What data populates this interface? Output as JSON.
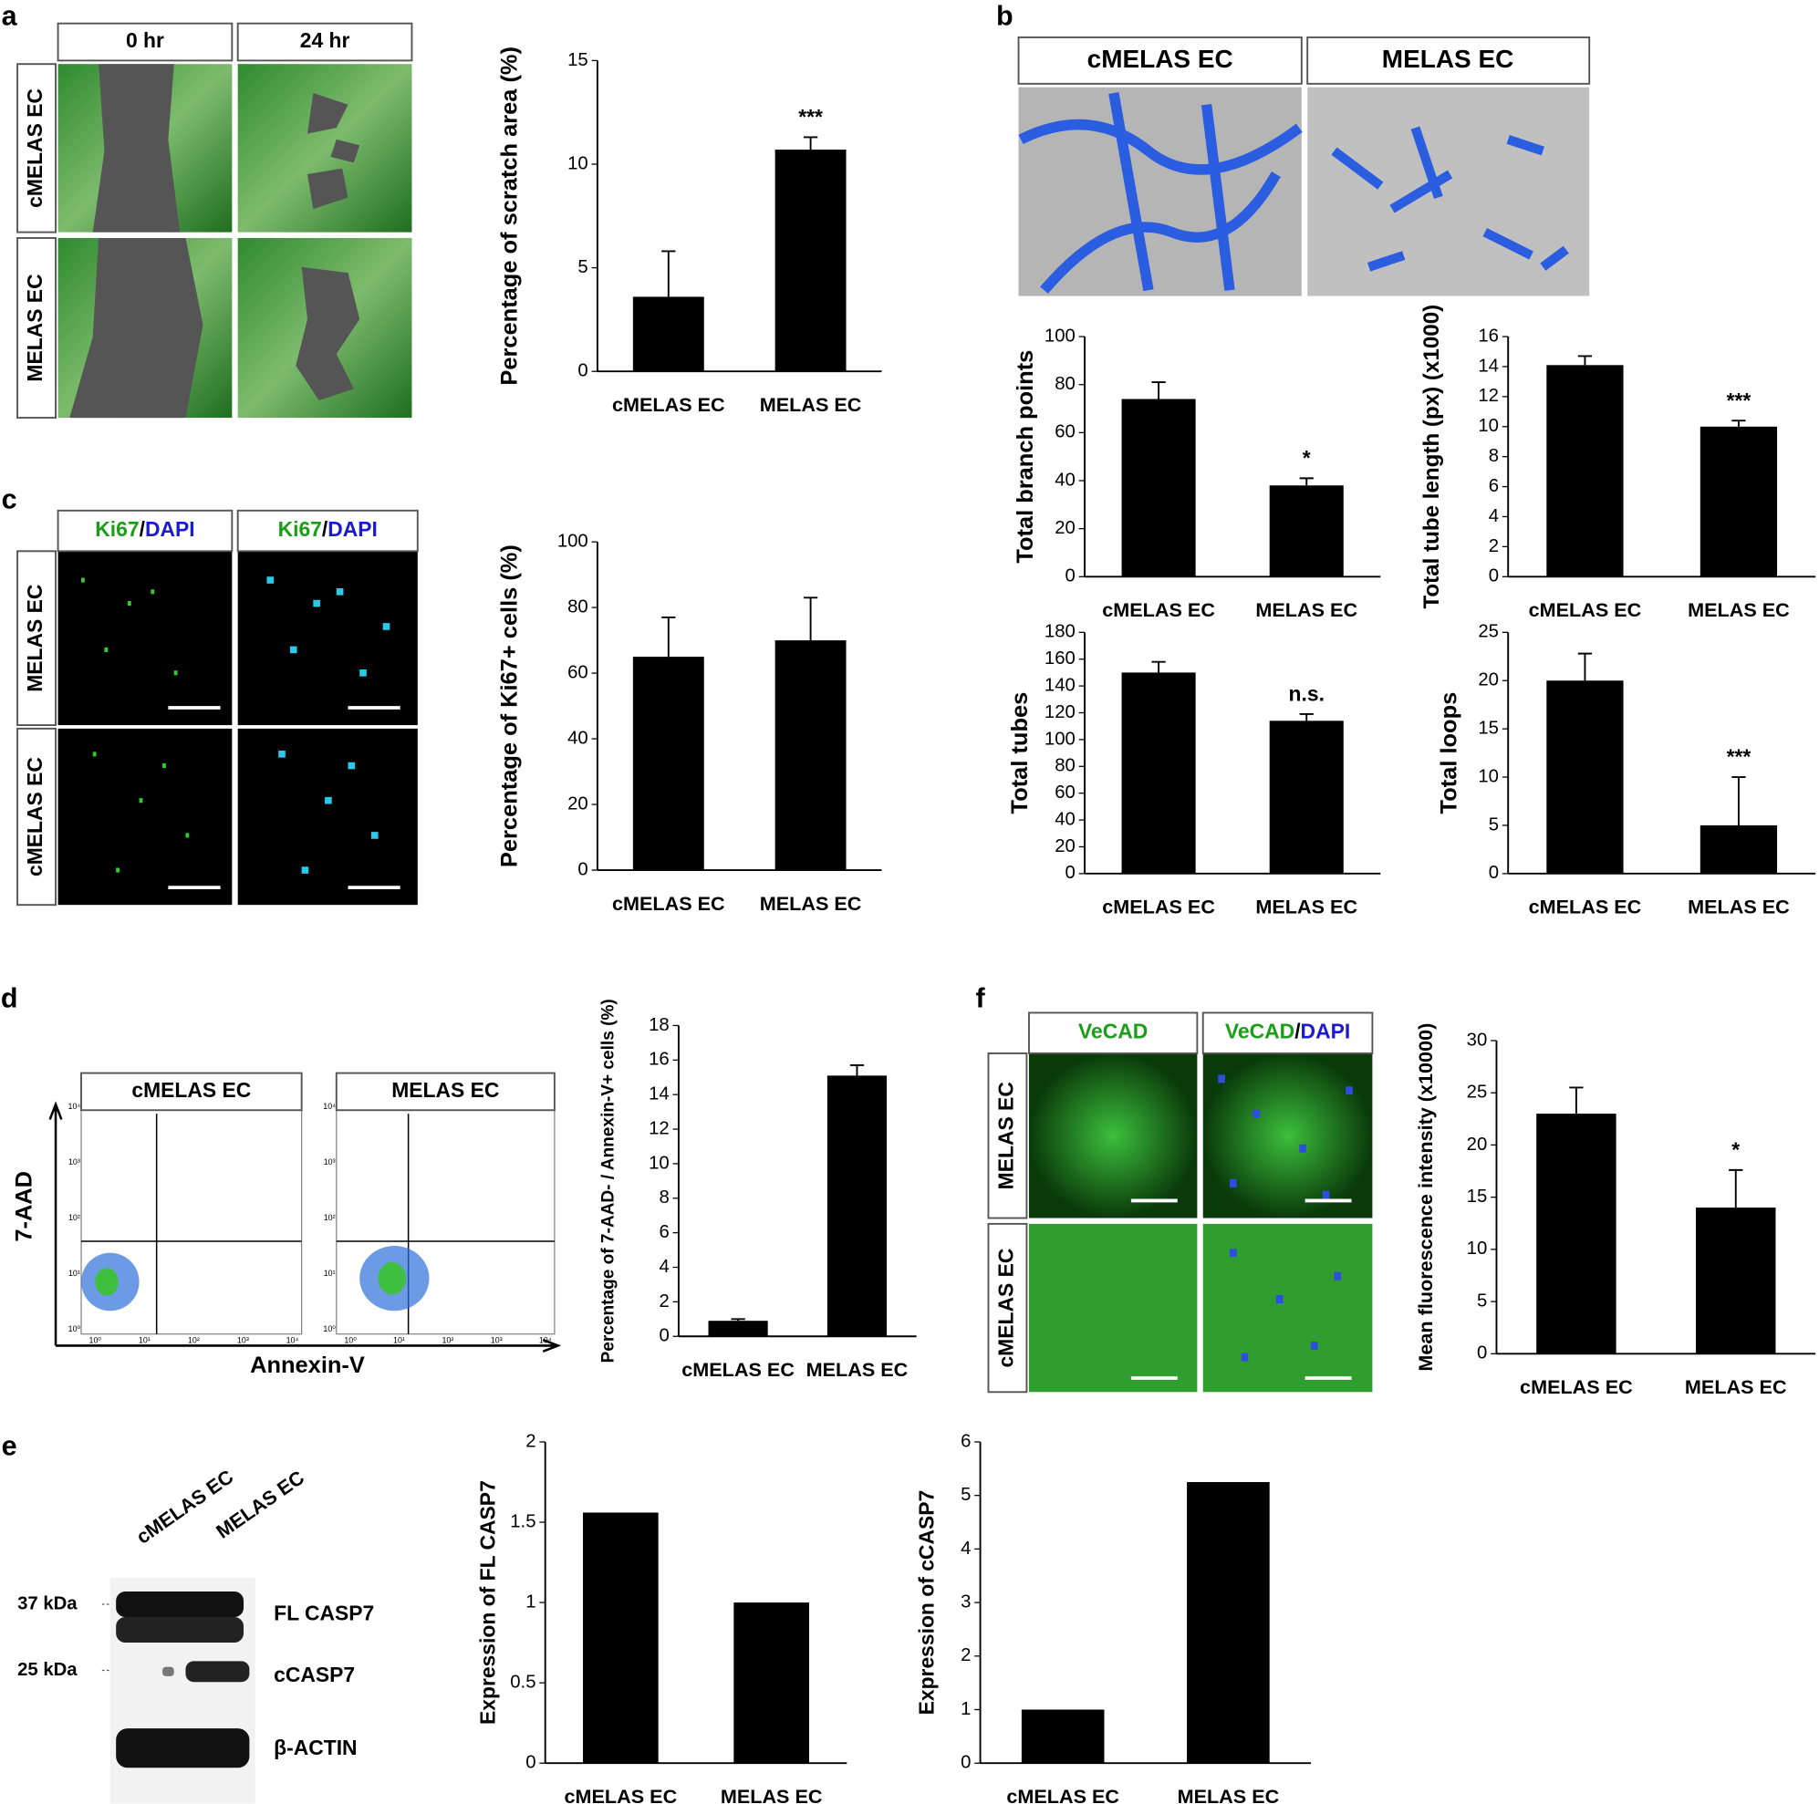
{
  "panel_letters": [
    "a",
    "b",
    "c",
    "d",
    "e",
    "f"
  ],
  "images": {
    "a": {
      "columns": [
        "0 hr",
        "24 hr"
      ],
      "rows": [
        "cMELAS EC",
        "MELAS EC"
      ]
    },
    "b": {
      "columns": [
        "cMELAS EC",
        "MELAS EC"
      ]
    },
    "c": {
      "columns": [
        [
          "Ki67",
          "/",
          "DAPI"
        ],
        [
          "Ki67",
          "/",
          "DAPI"
        ]
      ],
      "rows": [
        "MELAS EC",
        "cMELAS EC"
      ]
    },
    "f": {
      "columns": [
        [
          "VeCAD"
        ],
        [
          "VeCAD",
          "/",
          "DAPI"
        ]
      ],
      "rows": [
        "MELAS EC",
        "cMELAS EC"
      ]
    }
  },
  "flow": {
    "plots": [
      "cMELAS EC",
      "MELAS EC"
    ],
    "xlabel": "Annexin-V",
    "ylabel": "7-AAD",
    "ticks": [
      "10⁰",
      "10¹",
      "10²",
      "10³",
      "10⁴"
    ]
  },
  "blot": {
    "lanes": [
      "cMELAS EC",
      "MELAS EC"
    ],
    "markers": [
      "37 kDa",
      "25 kDa"
    ],
    "bands": [
      "FL CASP7",
      "cCASP7",
      "β-ACTIN"
    ]
  },
  "chart_data": [
    {
      "type": "bar",
      "ylabel": "Percentage of scratch area (%)",
      "categories": [
        "cMELAS EC",
        "MELAS EC"
      ],
      "values": [
        3.6,
        10.7
      ],
      "errors": [
        2.2,
        0.6
      ],
      "annotations": [
        null,
        "***"
      ],
      "color": "#000000",
      "ylim": [
        0,
        15
      ],
      "yticks": [
        0,
        5,
        10,
        15
      ]
    },
    {
      "type": "bar",
      "ylabel": "Total branch points",
      "categories": [
        "cMELAS EC",
        "MELAS EC"
      ],
      "values": [
        74,
        38
      ],
      "errors": [
        7,
        3
      ],
      "annotations": [
        null,
        "*"
      ],
      "color": "#000000",
      "ylim": [
        0,
        100
      ],
      "yticks": [
        0,
        20,
        40,
        60,
        80,
        100
      ]
    },
    {
      "type": "bar",
      "ylabel": "Total tube length (px) (x1000)",
      "categories": [
        "cMELAS EC",
        "MELAS EC"
      ],
      "values": [
        14.1,
        10
      ],
      "errors": [
        0.6,
        0.4
      ],
      "annotations": [
        null,
        "***"
      ],
      "color": "#000000",
      "ylim": [
        0,
        16
      ],
      "yticks": [
        0,
        2,
        4,
        6,
        8,
        10,
        12,
        14,
        16
      ]
    },
    {
      "type": "bar",
      "ylabel": "Total tubes",
      "categories": [
        "cMELAS EC",
        "MELAS EC"
      ],
      "values": [
        150,
        114
      ],
      "errors": [
        8,
        5
      ],
      "annotations": [
        null,
        "n.s."
      ],
      "color": "#000000",
      "ylim": [
        0,
        180
      ],
      "yticks": [
        0,
        20,
        40,
        60,
        80,
        100,
        120,
        140,
        160,
        180
      ]
    },
    {
      "type": "bar",
      "ylabel": "Total loops",
      "categories": [
        "cMELAS EC",
        "MELAS EC"
      ],
      "values": [
        20,
        5
      ],
      "errors": [
        2.8,
        5
      ],
      "annotations": [
        null,
        "***"
      ],
      "color": "#000000",
      "ylim": [
        0,
        25
      ],
      "yticks": [
        0,
        5,
        10,
        15,
        20,
        25
      ]
    },
    {
      "type": "bar",
      "ylabel": "Percentage of Ki67+ cells (%)",
      "categories": [
        "cMELAS EC",
        "MELAS EC"
      ],
      "values": [
        65,
        70
      ],
      "errors": [
        12,
        13
      ],
      "color": "#000000",
      "ylim": [
        0,
        100
      ],
      "yticks": [
        0,
        20,
        40,
        60,
        80,
        100
      ]
    },
    {
      "type": "bar",
      "ylabel": "Percentage of 7-AAD- / Annexin-V+ cells (%)",
      "categories": [
        "cMELAS EC",
        "MELAS EC"
      ],
      "values": [
        0.9,
        15.1
      ],
      "errors": [
        0.1,
        0.6
      ],
      "color": "#000000",
      "ylim": [
        0,
        18
      ],
      "yticks": [
        0,
        2,
        4,
        6,
        8,
        10,
        12,
        14,
        16,
        18
      ]
    },
    {
      "type": "bar",
      "ylabel": "Mean fluorescence intensity (x10000)",
      "categories": [
        "cMELAS EC",
        "MELAS EC"
      ],
      "values": [
        23,
        14
      ],
      "errors": [
        2.5,
        3.6
      ],
      "annotations": [
        null,
        "*"
      ],
      "color": "#000000",
      "ylim": [
        0,
        30
      ],
      "yticks": [
        0,
        5,
        10,
        15,
        20,
        25,
        30
      ]
    },
    {
      "type": "bar",
      "ylabel": "Expression of FL CASP7",
      "categories": [
        "cMELAS EC",
        "MELAS EC"
      ],
      "values": [
        1.56,
        1.0
      ],
      "color": "#000000",
      "ylim": [
        0,
        2
      ],
      "yticks": [
        0,
        0.5,
        1,
        1.5,
        2
      ]
    },
    {
      "type": "bar",
      "ylabel": "Expression of  cCASP7",
      "categories": [
        "cMELAS EC",
        "MELAS EC"
      ],
      "values": [
        1,
        5.25
      ],
      "color": "#000000",
      "ylim": [
        0,
        6
      ],
      "yticks": [
        0,
        1,
        2,
        3,
        4,
        5,
        6
      ]
    }
  ]
}
